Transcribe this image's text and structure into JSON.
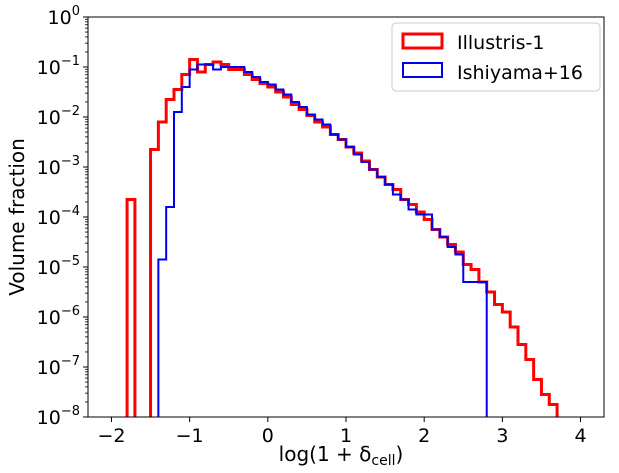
{
  "chart_data": {
    "type": "histogram",
    "xlabel": "log(1 + δ",
    "xlabel_sub": "cell",
    "xlabel_close": ")",
    "ylabel": "Volume fraction",
    "xlim": [
      -2.3,
      4.3
    ],
    "ylim_log10": [
      -8,
      0
    ],
    "y_scale": "log",
    "xticks": [
      {
        "value": -2,
        "label": "−2"
      },
      {
        "value": -1,
        "label": "−1"
      },
      {
        "value": 0,
        "label": "0"
      },
      {
        "value": 1,
        "label": "1"
      },
      {
        "value": 2,
        "label": "2"
      },
      {
        "value": 3,
        "label": "3"
      },
      {
        "value": 4,
        "label": "4"
      }
    ],
    "yticks": [
      {
        "exp": 0,
        "base": "10",
        "sup": "0"
      },
      {
        "exp": -1,
        "base": "10",
        "sup": "−1"
      },
      {
        "exp": -2,
        "base": "10",
        "sup": "−2"
      },
      {
        "exp": -3,
        "base": "10",
        "sup": "−3"
      },
      {
        "exp": -4,
        "base": "10",
        "sup": "−4"
      },
      {
        "exp": -5,
        "base": "10",
        "sup": "−5"
      },
      {
        "exp": -6,
        "base": "10",
        "sup": "−6"
      },
      {
        "exp": -7,
        "base": "10",
        "sup": "−7"
      },
      {
        "exp": -8,
        "base": "10",
        "sup": "−8"
      }
    ],
    "legend_position": "top-right",
    "grid": false,
    "series": [
      {
        "name": "Illustris-1",
        "color": "#ff0000",
        "bin_width": 0.1,
        "bins": [
          [
            -1.75,
            -3.65
          ],
          [
            -1.65,
            -8.5
          ],
          [
            -1.55,
            -8.5
          ],
          [
            -1.45,
            -2.65
          ],
          [
            -1.35,
            -2.1
          ],
          [
            -1.25,
            -1.65
          ],
          [
            -1.15,
            -1.45
          ],
          [
            -1.05,
            -1.15
          ],
          [
            -0.95,
            -0.85
          ],
          [
            -0.85,
            -1.1
          ],
          [
            -0.75,
            -0.95
          ],
          [
            -0.65,
            -0.9
          ],
          [
            -0.55,
            -0.95
          ],
          [
            -0.45,
            -1.05
          ],
          [
            -0.35,
            -1.05
          ],
          [
            -0.25,
            -1.15
          ],
          [
            -0.15,
            -1.25
          ],
          [
            -0.05,
            -1.33
          ],
          [
            0.05,
            -1.4
          ],
          [
            0.15,
            -1.5
          ],
          [
            0.25,
            -1.6
          ],
          [
            0.35,
            -1.75
          ],
          [
            0.45,
            -1.85
          ],
          [
            0.55,
            -1.97
          ],
          [
            0.65,
            -2.1
          ],
          [
            0.75,
            -2.2
          ],
          [
            0.85,
            -2.35
          ],
          [
            0.95,
            -2.45
          ],
          [
            1.05,
            -2.6
          ],
          [
            1.15,
            -2.72
          ],
          [
            1.25,
            -2.88
          ],
          [
            1.35,
            -3.05
          ],
          [
            1.45,
            -3.2
          ],
          [
            1.55,
            -3.35
          ],
          [
            1.65,
            -3.45
          ],
          [
            1.75,
            -3.65
          ],
          [
            1.85,
            -3.75
          ],
          [
            1.95,
            -3.9
          ],
          [
            2.05,
            -4.05
          ],
          [
            2.15,
            -4.25
          ],
          [
            2.25,
            -4.4
          ],
          [
            2.35,
            -4.55
          ],
          [
            2.45,
            -4.7
          ],
          [
            2.55,
            -4.95
          ],
          [
            2.65,
            -5.05
          ],
          [
            2.75,
            -5.3
          ],
          [
            2.85,
            -5.5
          ],
          [
            2.95,
            -5.75
          ],
          [
            3.05,
            -5.9
          ],
          [
            3.15,
            -6.2
          ],
          [
            3.25,
            -6.55
          ],
          [
            3.35,
            -6.85
          ],
          [
            3.45,
            -7.25
          ],
          [
            3.55,
            -7.55
          ],
          [
            3.65,
            -7.75
          ]
        ]
      },
      {
        "name": "Ishiyama+16",
        "color": "#0000ee",
        "bin_width": 0.1,
        "bins": [
          [
            -1.35,
            -4.85
          ],
          [
            -1.25,
            -3.8
          ],
          [
            -1.15,
            -1.9
          ],
          [
            -1.05,
            -1.4
          ],
          [
            -0.95,
            -1.05
          ],
          [
            -0.85,
            -0.95
          ],
          [
            -0.75,
            -0.95
          ],
          [
            -0.65,
            -1.05
          ],
          [
            -0.55,
            -1.0
          ],
          [
            -0.45,
            -1.0
          ],
          [
            -0.35,
            -1.0
          ],
          [
            -0.25,
            -1.1
          ],
          [
            -0.15,
            -1.2
          ],
          [
            -0.05,
            -1.3
          ],
          [
            0.05,
            -1.35
          ],
          [
            0.15,
            -1.45
          ],
          [
            0.25,
            -1.55
          ],
          [
            0.35,
            -1.7
          ],
          [
            0.45,
            -1.8
          ],
          [
            0.55,
            -1.95
          ],
          [
            0.65,
            -2.05
          ],
          [
            0.75,
            -2.15
          ],
          [
            0.85,
            -2.35
          ],
          [
            0.95,
            -2.45
          ],
          [
            1.05,
            -2.6
          ],
          [
            1.15,
            -2.75
          ],
          [
            1.25,
            -2.9
          ],
          [
            1.35,
            -3.05
          ],
          [
            1.45,
            -3.2
          ],
          [
            1.55,
            -3.35
          ],
          [
            1.65,
            -3.55
          ],
          [
            1.75,
            -3.65
          ],
          [
            1.85,
            -3.85
          ],
          [
            1.95,
            -3.95
          ],
          [
            2.05,
            -3.95
          ],
          [
            2.15,
            -4.25
          ],
          [
            2.25,
            -4.4
          ],
          [
            2.35,
            -4.6
          ],
          [
            2.45,
            -4.75
          ],
          [
            2.55,
            -5.3
          ],
          [
            2.65,
            -5.3
          ],
          [
            2.75,
            -5.3
          ]
        ]
      }
    ]
  }
}
